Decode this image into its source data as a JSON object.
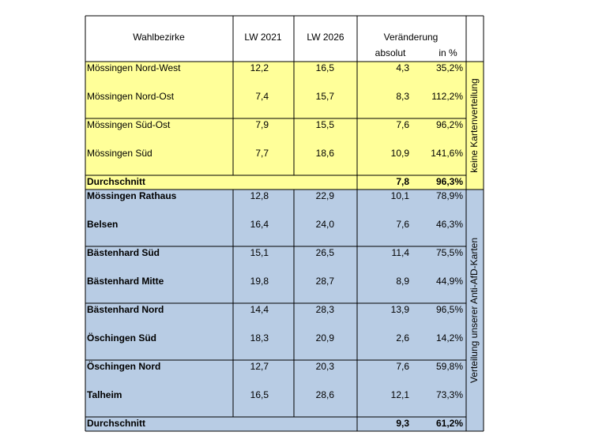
{
  "header": {
    "name": "Wahlbezirke",
    "lw2021": "LW 2021",
    "lw2026": "LW 2026",
    "change": "Veränderung",
    "absolute": "absolut",
    "percent": "in %"
  },
  "groups": [
    {
      "side_label": "keine Kartenverteilung",
      "color": "#ffff99",
      "rows": [
        [
          "Mössingen Nord-West",
          "12,2",
          "16,5",
          "4,3",
          "35,2%"
        ],
        [
          "Mössingen Nord-Ost",
          "7,4",
          "15,7",
          "8,3",
          "112,2%"
        ],
        [
          "Mössingen Süd-Ost",
          "7,9",
          "15,5",
          "7,6",
          "96,2%"
        ],
        [
          "Mössingen Süd",
          "7,7",
          "18,6",
          "10,9",
          "141,6%"
        ]
      ],
      "average": {
        "label": "Durchschnitt",
        "absolute": "7,8",
        "percent": "96,3%"
      }
    },
    {
      "side_label": "Verteilung unserer Anti-AfD-Karten",
      "color": "#b8cce4",
      "rows": [
        [
          "Mössingen Rathaus",
          "12,8",
          "22,9",
          "10,1",
          "78,9%"
        ],
        [
          "Belsen",
          "16,4",
          "24,0",
          "7,6",
          "46,3%"
        ],
        [
          "Bästenhard Süd",
          "15,1",
          "26,5",
          "11,4",
          "75,5%"
        ],
        [
          "Bästenhard Mitte",
          "19,8",
          "28,7",
          "8,9",
          "44,9%"
        ],
        [
          "Bästenhard Nord",
          "14,4",
          "28,3",
          "13,9",
          "96,5%"
        ],
        [
          "Öschingen Süd",
          "18,3",
          "20,9",
          "2,6",
          "14,2%"
        ],
        [
          "Öschingen Nord",
          "12,7",
          "20,3",
          "7,6",
          "59,8%"
        ],
        [
          "Talheim",
          "16,5",
          "28,6",
          "12,1",
          "73,3%"
        ]
      ],
      "average": {
        "label": "Durchschnitt",
        "absolute": "9,3",
        "percent": "61,2%"
      }
    }
  ]
}
